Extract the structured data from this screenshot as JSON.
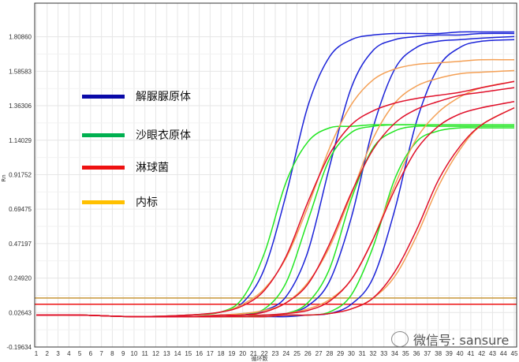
{
  "chart_data": {
    "type": "line",
    "title": "",
    "xlabel": "循环数",
    "ylabel": "Rn",
    "xlim": [
      1,
      45
    ],
    "ylim": [
      -0.19634,
      2.026
    ],
    "x_ticks": [
      1,
      2,
      3,
      4,
      5,
      6,
      7,
      8,
      9,
      10,
      11,
      12,
      13,
      14,
      15,
      16,
      17,
      18,
      19,
      20,
      21,
      22,
      23,
      24,
      25,
      26,
      27,
      28,
      29,
      30,
      31,
      32,
      33,
      34,
      35,
      36,
      37,
      38,
      39,
      40,
      41,
      42,
      43,
      44,
      45
    ],
    "y_ticks": [
      "1.80860",
      "1.58583",
      "1.36306",
      "1.14029",
      "0.91752",
      "0.69475",
      "0.47197",
      "0.24920",
      "0.02643",
      "-0.19634"
    ],
    "grid": true,
    "legend_position": "top-left",
    "legend": [
      {
        "label": "解脲脲原体",
        "color": "#0a0aa8"
      },
      {
        "label": "沙眼衣原体",
        "color": "#00b050"
      },
      {
        "label": "淋球菌",
        "color": "#ee1111"
      },
      {
        "label": "内标",
        "color": "#ffc000"
      }
    ],
    "thresholds": [
      {
        "value": 0.12,
        "color": "#c8963a"
      },
      {
        "value": 0.08,
        "color": "#ee1111"
      }
    ],
    "x": [
      1,
      5,
      10,
      15,
      18,
      20,
      22,
      24,
      26,
      28,
      30,
      32,
      34,
      36,
      38,
      40,
      42,
      45
    ],
    "series": [
      {
        "group": "解脲脲原体",
        "color": "#1a22d8",
        "values": [
          0.01,
          0.01,
          0.0,
          0.01,
          0.03,
          0.09,
          0.31,
          0.79,
          1.36,
          1.68,
          1.79,
          1.82,
          1.83,
          1.83,
          1.83,
          1.84,
          1.84,
          1.84
        ]
      },
      {
        "group": "解脲脲原体",
        "color": "#1a22d8",
        "values": [
          0.01,
          0.01,
          0.0,
          0.0,
          0.0,
          0.01,
          0.04,
          0.13,
          0.42,
          0.97,
          1.48,
          1.72,
          1.79,
          1.81,
          1.82,
          1.82,
          1.83,
          1.83
        ]
      },
      {
        "group": "解脲脲原体",
        "color": "#1a22d8",
        "values": [
          0.01,
          0.01,
          0.0,
          0.0,
          0.0,
          0.0,
          0.01,
          0.02,
          0.07,
          0.23,
          0.64,
          1.22,
          1.6,
          1.74,
          1.78,
          1.79,
          1.8,
          1.81
        ]
      },
      {
        "group": "解脲脲原体",
        "color": "#1a22d8",
        "values": [
          0.01,
          0.01,
          0.0,
          0.0,
          0.0,
          0.0,
          0.0,
          0.0,
          0.01,
          0.02,
          0.08,
          0.25,
          0.69,
          1.26,
          1.61,
          1.74,
          1.78,
          1.79
        ]
      },
      {
        "group": "沙眼衣原体",
        "color": "#22e622",
        "values": [
          0.01,
          0.01,
          0.0,
          0.01,
          0.03,
          0.12,
          0.41,
          0.87,
          1.13,
          1.22,
          1.23,
          1.24,
          1.24,
          1.24,
          1.24,
          1.24,
          1.24,
          1.24
        ]
      },
      {
        "group": "沙眼衣原体",
        "color": "#22e622",
        "values": [
          0.01,
          0.01,
          0.0,
          0.0,
          0.01,
          0.02,
          0.05,
          0.22,
          0.62,
          1.02,
          1.19,
          1.23,
          1.24,
          1.24,
          1.24,
          1.24,
          1.24,
          1.24
        ]
      },
      {
        "group": "沙眼衣原体",
        "color": "#22e622",
        "values": [
          0.01,
          0.01,
          0.0,
          0.0,
          0.0,
          0.0,
          0.01,
          0.02,
          0.09,
          0.31,
          0.76,
          1.09,
          1.2,
          1.23,
          1.23,
          1.23,
          1.23,
          1.23
        ]
      },
      {
        "group": "沙眼衣原体",
        "color": "#22e622",
        "values": [
          0.01,
          0.01,
          0.0,
          0.0,
          0.0,
          0.0,
          0.0,
          0.01,
          0.01,
          0.03,
          0.14,
          0.45,
          0.89,
          1.13,
          1.2,
          1.22,
          1.22,
          1.22
        ]
      },
      {
        "group": "内标",
        "color": "#f4a055",
        "values": [
          0.01,
          0.01,
          0.0,
          0.01,
          0.03,
          0.08,
          0.18,
          0.38,
          0.71,
          1.09,
          1.37,
          1.53,
          1.6,
          1.63,
          1.64,
          1.65,
          1.66,
          1.66
        ]
      },
      {
        "group": "内标",
        "color": "#f4a055",
        "values": [
          0.01,
          0.01,
          0.0,
          0.0,
          0.01,
          0.02,
          0.04,
          0.09,
          0.22,
          0.45,
          0.79,
          1.15,
          1.38,
          1.49,
          1.54,
          1.57,
          1.58,
          1.59
        ]
      },
      {
        "group": "内标",
        "color": "#f4a055",
        "values": [
          0.01,
          0.01,
          0.0,
          0.0,
          0.0,
          0.01,
          0.01,
          0.02,
          0.05,
          0.11,
          0.24,
          0.5,
          0.85,
          1.15,
          1.32,
          1.42,
          1.48,
          1.52
        ]
      },
      {
        "group": "内标",
        "color": "#f4a055",
        "values": [
          0.01,
          0.01,
          0.0,
          0.0,
          0.0,
          0.0,
          0.0,
          0.01,
          0.01,
          0.02,
          0.05,
          0.12,
          0.26,
          0.52,
          0.84,
          1.08,
          1.24,
          1.35
        ]
      },
      {
        "group": "淋球菌",
        "color": "#e0102a",
        "values": [
          0.01,
          0.01,
          0.0,
          0.01,
          0.03,
          0.07,
          0.17,
          0.39,
          0.74,
          1.05,
          1.24,
          1.33,
          1.38,
          1.41,
          1.43,
          1.45,
          1.48,
          1.52
        ]
      },
      {
        "group": "淋球菌",
        "color": "#e0102a",
        "values": [
          0.01,
          0.01,
          0.0,
          0.0,
          0.01,
          0.01,
          0.03,
          0.09,
          0.21,
          0.47,
          0.8,
          1.08,
          1.25,
          1.34,
          1.39,
          1.43,
          1.45,
          1.48
        ]
      },
      {
        "group": "淋球菌",
        "color": "#e0102a",
        "values": [
          0.01,
          0.01,
          0.0,
          0.0,
          0.0,
          0.01,
          0.01,
          0.02,
          0.04,
          0.1,
          0.24,
          0.5,
          0.82,
          1.08,
          1.23,
          1.31,
          1.35,
          1.39
        ]
      },
      {
        "group": "淋球菌",
        "color": "#e0102a",
        "values": [
          0.01,
          0.01,
          0.0,
          0.0,
          0.0,
          0.0,
          0.0,
          0.01,
          0.01,
          0.02,
          0.05,
          0.12,
          0.29,
          0.56,
          0.88,
          1.1,
          1.24,
          1.35
        ]
      }
    ]
  },
  "watermark": {
    "text": "微信号: sansure",
    "icon": "wechat-icon"
  }
}
